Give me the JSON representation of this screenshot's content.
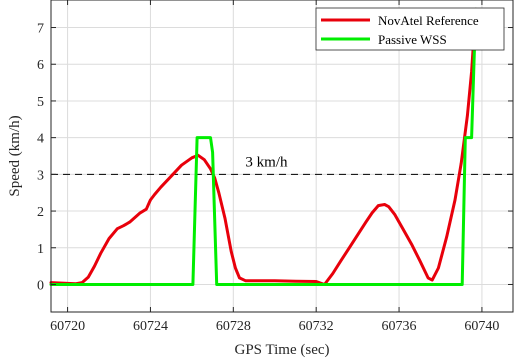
{
  "chart_data": {
    "type": "line",
    "title": "",
    "xlabel": "GPS Time (sec)",
    "ylabel": "Speed (km/h)",
    "xlim": [
      60719.2,
      60741.5
    ],
    "ylim": [
      -0.75,
      7.75
    ],
    "xticks": [
      60720,
      60724,
      60728,
      60732,
      60736,
      60740
    ],
    "yticks": [
      0,
      1,
      2,
      3,
      4,
      5,
      6,
      7
    ],
    "grid": true,
    "legend_position": "top-right",
    "reference_line": {
      "y": 3,
      "label": "3 km/h",
      "label_x": 60729.6,
      "color": "#000000",
      "style": "dashed"
    },
    "series": [
      {
        "name": "NovAtel Reference",
        "color": "#e8000b",
        "x": [
          60719.2,
          60720.0,
          60720.4,
          60720.7,
          60721.0,
          60721.3,
          60721.6,
          60722.0,
          60722.4,
          60722.7,
          60723.0,
          60723.3,
          60723.5,
          60723.8,
          60724.0,
          60724.2,
          60724.5,
          60725.0,
          60725.5,
          60726.0,
          60726.3,
          60726.6,
          60726.9,
          60727.1,
          60727.3,
          60727.6,
          60727.9,
          60728.1,
          60728.3,
          60728.6,
          60729.0,
          60730.0,
          60731.0,
          60732.0,
          60732.4,
          60732.8,
          60733.2,
          60733.6,
          60734.0,
          60734.4,
          60734.7,
          60735.0,
          60735.3,
          60735.5,
          60735.8,
          60736.2,
          60736.6,
          60737.0,
          60737.4,
          60737.6,
          60737.9,
          60738.3,
          60738.7,
          60739.0,
          60739.3,
          60739.5,
          60739.7
        ],
        "values": [
          0.05,
          0.03,
          0.02,
          0.05,
          0.2,
          0.5,
          0.85,
          1.25,
          1.52,
          1.6,
          1.7,
          1.85,
          1.95,
          2.05,
          2.3,
          2.45,
          2.65,
          2.95,
          3.25,
          3.45,
          3.52,
          3.4,
          3.15,
          2.9,
          2.5,
          1.8,
          0.9,
          0.45,
          0.18,
          0.1,
          0.1,
          0.1,
          0.09,
          0.08,
          0.0,
          0.3,
          0.65,
          1.0,
          1.35,
          1.7,
          1.95,
          2.15,
          2.18,
          2.12,
          1.9,
          1.5,
          1.1,
          0.65,
          0.18,
          0.12,
          0.45,
          1.3,
          2.3,
          3.3,
          4.6,
          5.8,
          7.5
        ]
      },
      {
        "name": "Passive WSS",
        "color": "#00ee00",
        "x": [
          60719.2,
          60726.05,
          60726.25,
          60726.9,
          60727.0,
          60727.2,
          60739.05,
          60739.2,
          60739.5,
          60739.7
        ],
        "values": [
          0,
          0,
          4,
          4,
          3.6,
          0,
          0,
          4,
          4,
          7.5
        ]
      }
    ]
  }
}
